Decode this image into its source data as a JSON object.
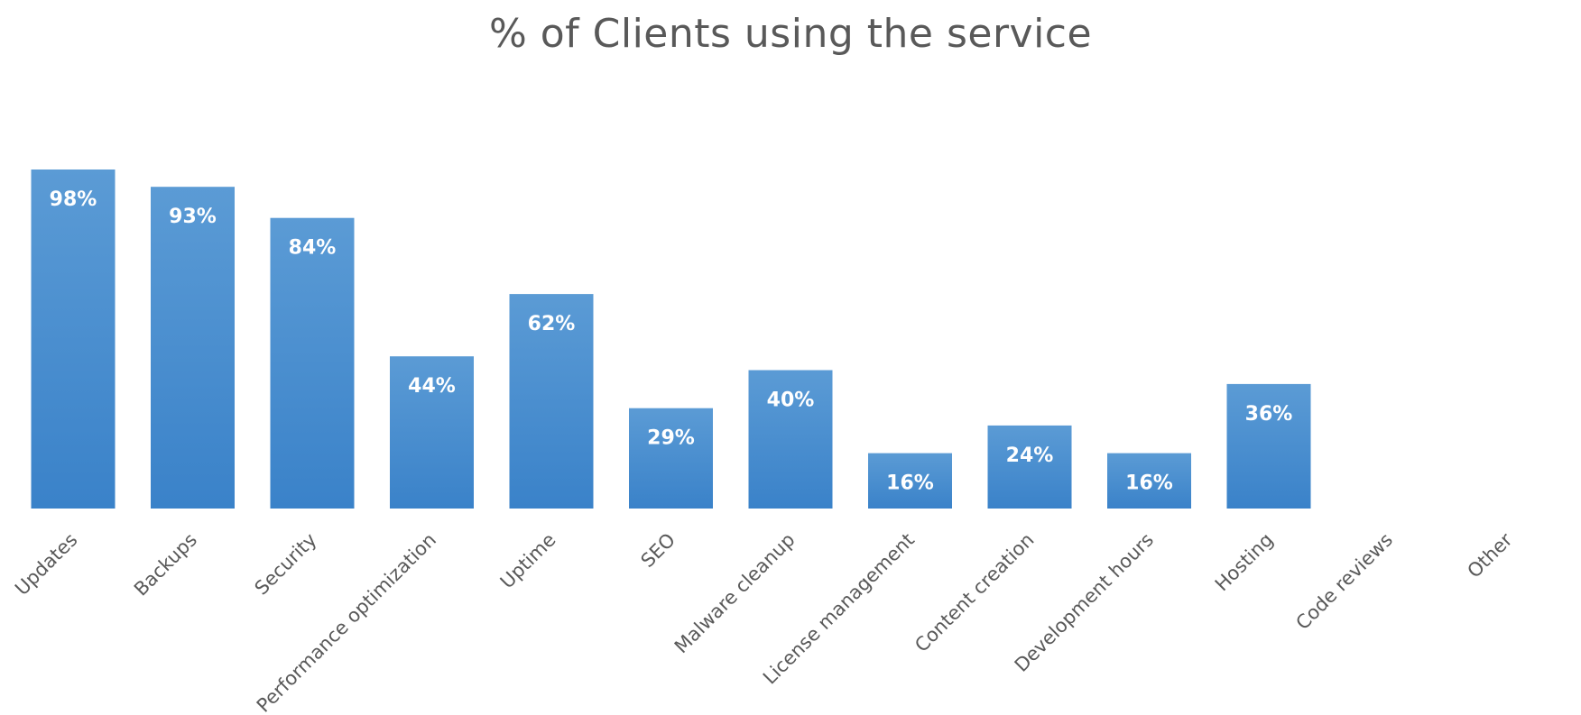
{
  "chart_data": {
    "type": "bar",
    "title": "% of Clients using the service",
    "categories": [
      "Updates",
      "Backups",
      "Security",
      "Performance optimization",
      "Uptime",
      "SEO",
      "Malware cleanup",
      "License management",
      "Content creation",
      "Development hours",
      "Hosting",
      "Code reviews",
      "Other"
    ],
    "values": [
      98,
      93,
      84,
      44,
      62,
      29,
      40,
      16,
      24,
      16,
      36,
      null,
      null
    ],
    "data_labels": [
      "98%",
      "93%",
      "84%",
      "44%",
      "62%",
      "29%",
      "40%",
      "16%",
      "24%",
      "16%",
      "36%",
      "",
      ""
    ],
    "ylim": [
      0,
      100
    ],
    "grid": false,
    "legend": "none",
    "bar_color_top": "#5b9bd5",
    "bar_color_bottom": "#3a82c9",
    "text_color": "#595959"
  }
}
